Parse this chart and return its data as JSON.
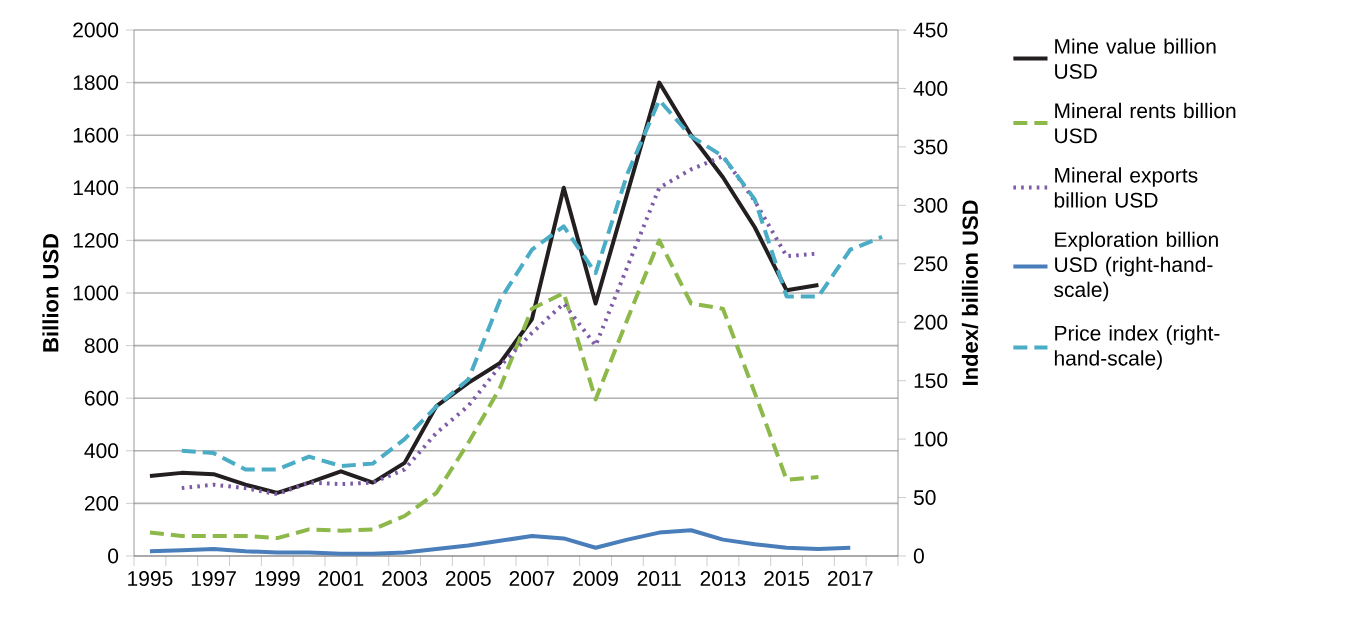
{
  "chart_data": {
    "type": "line",
    "ylabel": "Billion USD",
    "y2label": "Index/ billion USD",
    "categories": [
      "1995",
      null,
      "1997",
      null,
      "1999",
      null,
      "2001",
      null,
      "2003",
      null,
      "2005",
      null,
      "2007",
      null,
      "2009",
      null,
      "2011",
      null,
      "2013",
      null,
      "2015",
      null,
      "2017",
      null
    ],
    "ylim": [
      0,
      2000
    ],
    "yticks": [
      0,
      200,
      400,
      600,
      800,
      1000,
      1200,
      1400,
      1600,
      1800,
      2000
    ],
    "y2lim": [
      0,
      450
    ],
    "y2ticks": [
      0,
      50,
      100,
      150,
      200,
      250,
      300,
      350,
      400,
      450
    ],
    "grid": "y",
    "legend": "right",
    "series": [
      {
        "name": "Mine value billion USD",
        "color": "#231f20",
        "line_style": "solid",
        "values": [
          304,
          316,
          311,
          271,
          240,
          279,
          322,
          279,
          354,
          570,
          658,
          734,
          900,
          1400,
          960,
          1380,
          1800,
          1600,
          1440,
          1250,
          1010,
          1030,
          null,
          null
        ]
      },
      {
        "name": "Mineral rents billion USD",
        "color": "#8db84a",
        "line_style": "dashed",
        "values": [
          89,
          76,
          76,
          76,
          68,
          101,
          96,
          101,
          152,
          240,
          430,
          640,
          940,
          1000,
          595,
          900,
          1200,
          960,
          940,
          620,
          290,
          300,
          null,
          null
        ]
      },
      {
        "name": "Mineral exports billion USD",
        "color": "#7d5ba6",
        "line_style": "dotted",
        "values": [
          null,
          258,
          271,
          258,
          235,
          279,
          273,
          279,
          329,
          468,
          570,
          722,
          848,
          960,
          800,
          1100,
          1400,
          1470,
          1520,
          1350,
          1140,
          1150,
          null,
          null
        ]
      },
      {
        "name": "Exploration billion USD (right-hand-scale)",
        "color": "#4a7ebb",
        "line_style": "solid",
        "axis": "y2",
        "values": [
          4,
          5,
          6,
          4,
          3,
          3,
          2,
          2,
          3,
          6,
          9,
          13,
          17,
          15,
          7,
          14,
          20,
          22,
          14,
          10,
          7,
          6,
          7,
          null
        ]
      },
      {
        "name": "Price index (right-hand-scale)",
        "color": "#4bacc6",
        "line_style": "dashed",
        "axis": "y2",
        "values": [
          null,
          90,
          88,
          74,
          74,
          85,
          77,
          79,
          100,
          128,
          151,
          219,
          262,
          282,
          242,
          327,
          390,
          359,
          342,
          305,
          222,
          222,
          262,
          273
        ]
      }
    ]
  }
}
